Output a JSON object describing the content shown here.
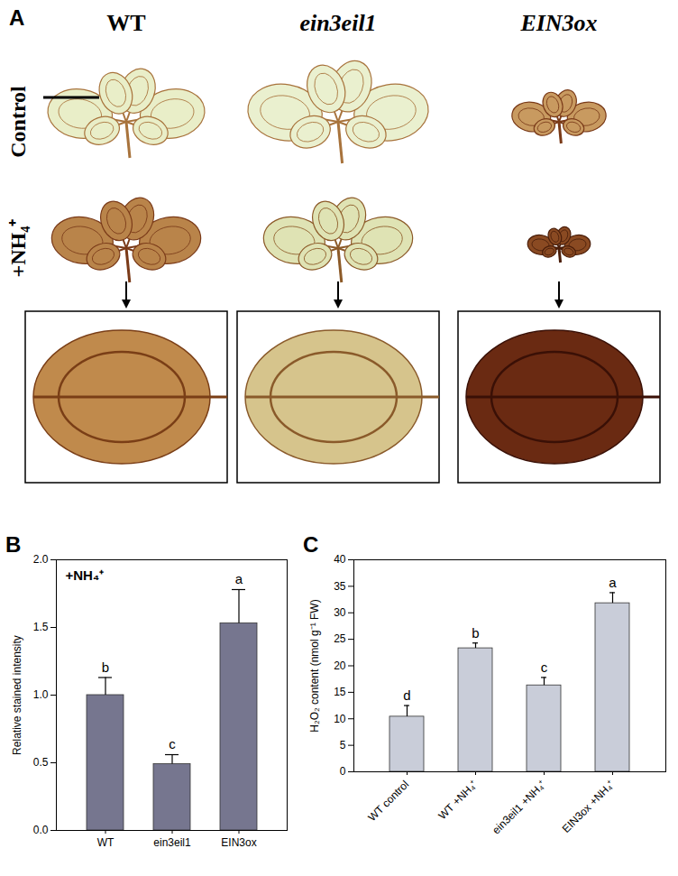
{
  "figure_a": {
    "panel_label": "A",
    "columns": [
      "WT",
      "ein3eil1",
      "EIN3ox"
    ],
    "rows": [
      "Control",
      "+NH₄⁺"
    ]
  },
  "chart_data": [
    {
      "type": "bar",
      "panel_label": "B",
      "annotation": "+NH₄⁺",
      "y_label": "Relative stained intensity",
      "categories": [
        "WT",
        "ein3eil1",
        "EIN3ox"
      ],
      "values": [
        1.0,
        0.49,
        1.53
      ],
      "errors": [
        0.13,
        0.07,
        0.25
      ],
      "letters": [
        "b",
        "c",
        "a"
      ],
      "color": "#76768f",
      "ylim": [
        0,
        2
      ],
      "yticks": [
        {
          "value": 0,
          "label": "0.0"
        },
        {
          "value": 0.5,
          "label": "0.5"
        },
        {
          "value": 1,
          "label": "1.0"
        },
        {
          "value": 1.5,
          "label": "1.5"
        },
        {
          "value": 2,
          "label": "2.0"
        }
      ]
    },
    {
      "type": "bar",
      "panel_label": "C",
      "y_label": "H₂O₂ content (nmol g⁻¹ FW)",
      "categories": [
        "WT control",
        "WT +NH₄⁺",
        "ein3eil1 +NH₄⁺",
        "EIN3ox +NH₄⁺"
      ],
      "values": [
        10.4,
        23.3,
        16.3,
        31.8
      ],
      "errors": [
        2.1,
        1.0,
        1.5,
        2.0
      ],
      "letters": [
        "d",
        "b",
        "c",
        "a"
      ],
      "color": "#c9cdd9",
      "ylim": [
        0,
        40
      ],
      "yticks": [
        0,
        5,
        10,
        15,
        20,
        25,
        30,
        35,
        40
      ]
    }
  ]
}
